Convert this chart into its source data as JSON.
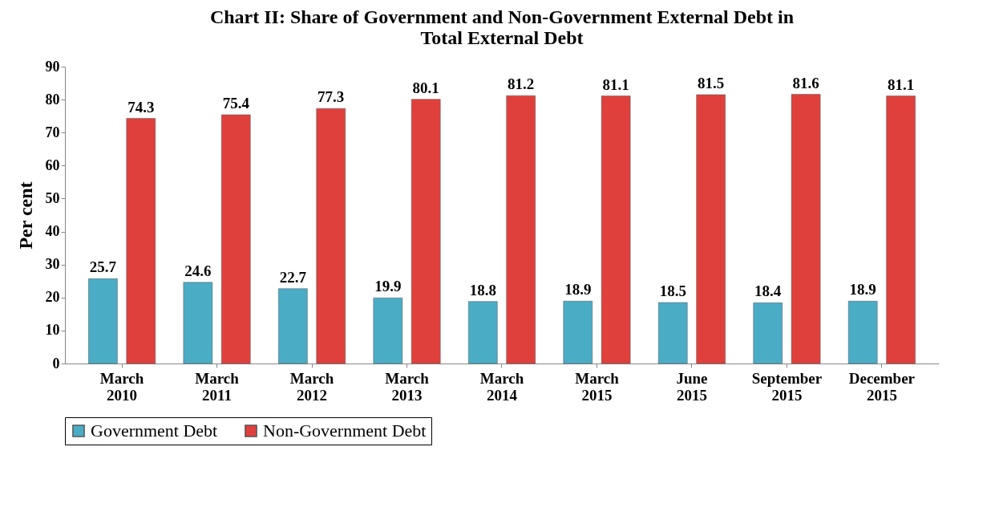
{
  "chart_data": {
    "type": "bar",
    "title": [
      "Chart II: Share of Government and Non-Government  External Debt in",
      "Total External Debt"
    ],
    "ylabel": "Per cent",
    "categories": [
      "March 2010",
      "March 2011",
      "March 2012",
      "March 2013",
      "March 2014",
      "March 2015",
      "June 2015",
      "September 2015",
      "December 2015"
    ],
    "series": [
      {
        "name": "Government Debt",
        "color": "#4bacc6",
        "values": [
          25.7,
          24.6,
          22.7,
          19.9,
          18.8,
          18.9,
          18.5,
          18.4,
          18.9
        ]
      },
      {
        "name": "Non-Government Debt",
        "color": "#e0403c",
        "values": [
          74.3,
          75.4,
          77.3,
          80.1,
          81.2,
          81.1,
          81.5,
          81.6,
          81.1
        ]
      }
    ],
    "ylim": [
      0,
      90
    ],
    "yticks": [
      0,
      10,
      20,
      30,
      40,
      50,
      60,
      70,
      80,
      90
    ],
    "grid": false,
    "legend": "bottom",
    "data_labels": true
  }
}
